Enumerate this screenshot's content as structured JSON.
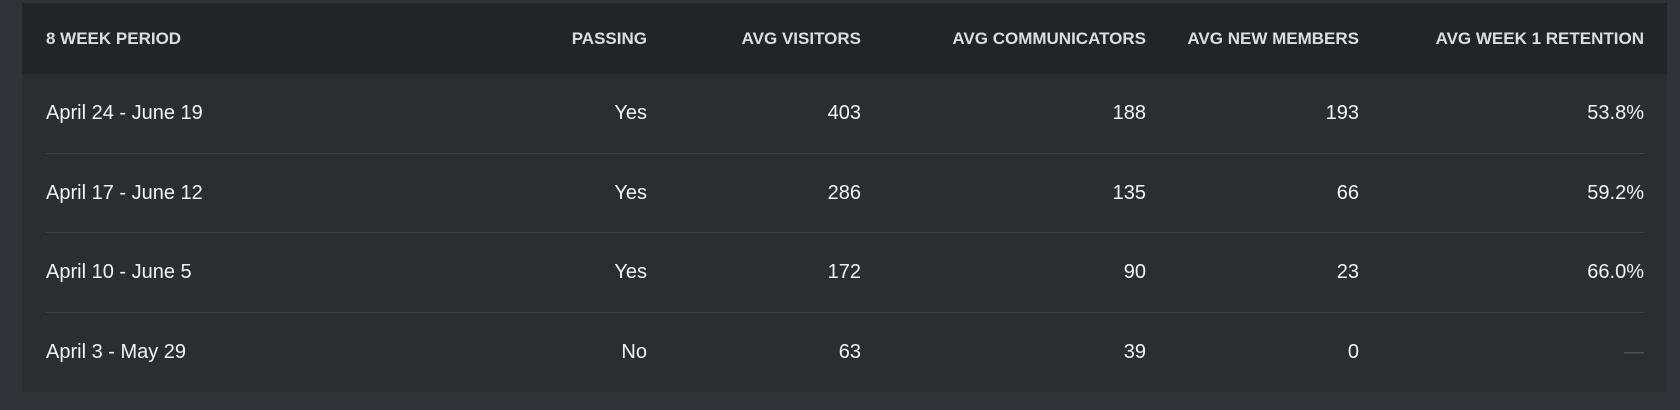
{
  "table": {
    "headers": [
      "8 WEEK PERIOD",
      "PASSING",
      "AVG VISITORS",
      "AVG COMMUNICATORS",
      "AVG NEW MEMBERS",
      "AVG WEEK 1 RETENTION"
    ],
    "rows": [
      [
        "April 24 - June 19",
        "Yes",
        "403",
        "188",
        "193",
        "53.8%"
      ],
      [
        "April 17 - June 12",
        "Yes",
        "286",
        "135",
        "66",
        "59.2%"
      ],
      [
        "April 10 - June 5",
        "Yes",
        "172",
        "90",
        "23",
        "66.0%"
      ],
      [
        "April 3 - May 29",
        "No",
        "63",
        "39",
        "0",
        "—"
      ]
    ]
  }
}
